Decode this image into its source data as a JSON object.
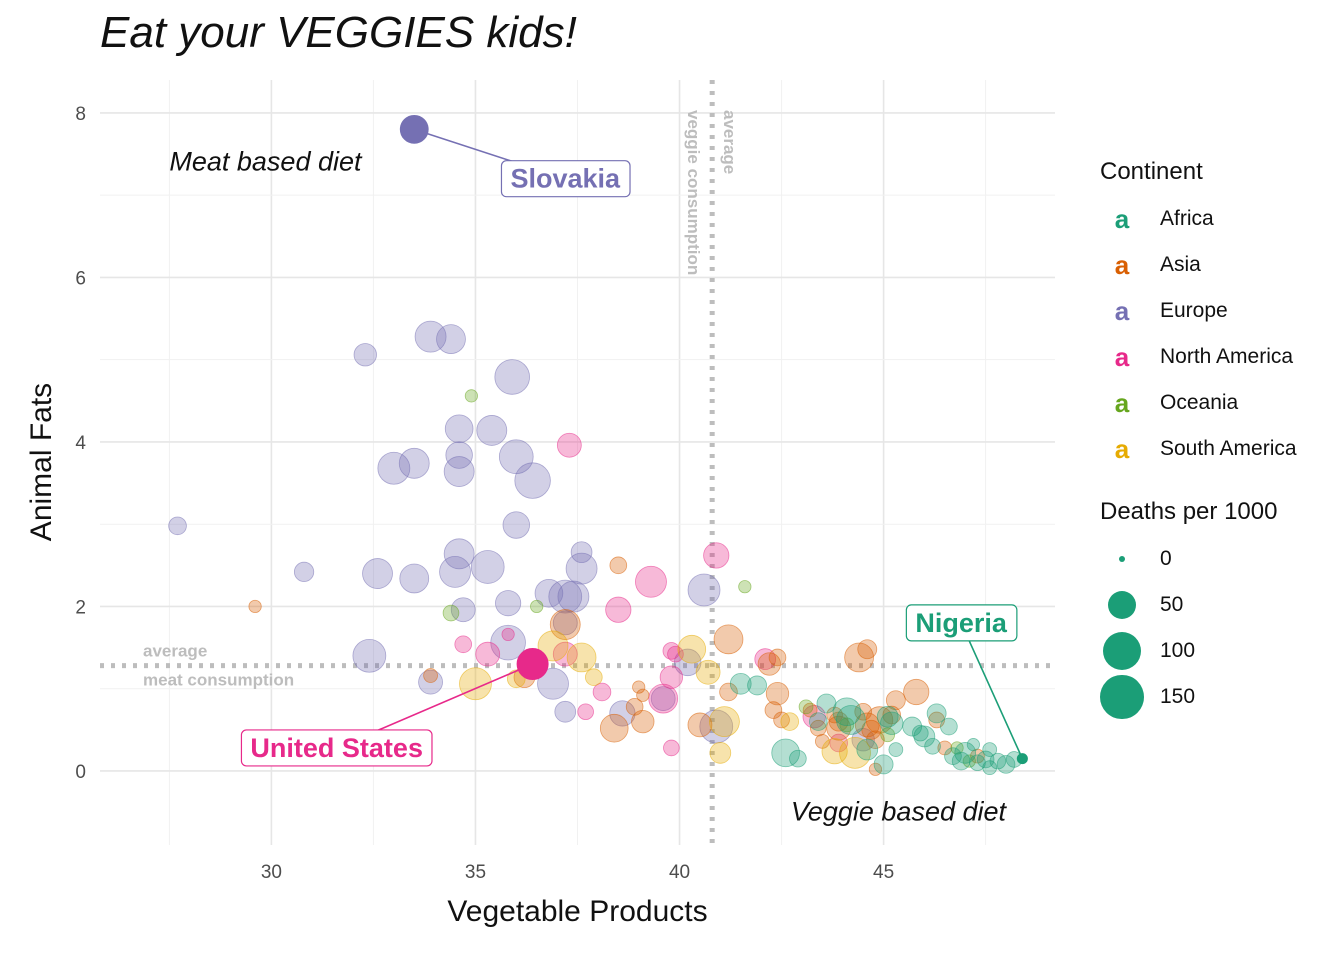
{
  "chart_data": {
    "type": "scatter",
    "title": "Eat your VEGGIES kids!",
    "xlabel": "Vegetable Products",
    "ylabel": "Animal Fats",
    "xlim": [
      25.8,
      49.2
    ],
    "ylim": [
      -0.9,
      8.4
    ],
    "x_ticks": [
      30,
      35,
      40,
      45
    ],
    "y_ticks": [
      0,
      2,
      4,
      6,
      8
    ],
    "grid": true,
    "legend_position": "right",
    "continents": [
      {
        "name": "Africa",
        "color": "#1b9e77"
      },
      {
        "name": "Asia",
        "color": "#d95f02"
      },
      {
        "name": "Europe",
        "color": "#7570b3"
      },
      {
        "name": "North America",
        "color": "#e7298a"
      },
      {
        "name": "Oceania",
        "color": "#66a61e"
      },
      {
        "name": "South America",
        "color": "#e6ab02"
      }
    ],
    "continent_legend_title": "Continent",
    "continent_key_glyph": "a",
    "size_legend_title": "Deaths per 1000",
    "size_legend": [
      0,
      50,
      100,
      150
    ],
    "average_vegetable": 40.8,
    "average_animal_fat": 1.28,
    "average_vegetable_label": [
      "average",
      "veggie consumption"
    ],
    "average_fat_label": [
      "average",
      "meat consumption"
    ],
    "quadrant_labels": [
      {
        "text": "Meat based diet",
        "x": 27.5,
        "y": 7.3
      },
      {
        "text": "Veggie based diet",
        "x": 48.0,
        "y": -0.6
      }
    ],
    "highlights": [
      {
        "name": "Slovakia",
        "continent": "Europe",
        "x": 33.5,
        "y": 7.8,
        "deaths": 45,
        "label_x": 37.2,
        "label_y": 7.2
      },
      {
        "name": "United States",
        "continent": "North America",
        "x": 36.4,
        "y": 1.3,
        "deaths": 60,
        "label_x": 31.6,
        "label_y": 0.28
      },
      {
        "name": "Nigeria",
        "continent": "Africa",
        "x": 48.4,
        "y": 0.15,
        "deaths": 1,
        "label_x": 46.9,
        "label_y": 1.8
      }
    ],
    "points": [
      {
        "c": "Europe",
        "x": 27.7,
        "y": 2.98,
        "d": 12
      },
      {
        "c": "Europe",
        "x": 30.8,
        "y": 2.42,
        "d": 16
      },
      {
        "c": "Europe",
        "x": 32.3,
        "y": 5.06,
        "d": 25
      },
      {
        "c": "Europe",
        "x": 33.0,
        "y": 3.68,
        "d": 65
      },
      {
        "c": "Europe",
        "x": 33.5,
        "y": 3.74,
        "d": 55
      },
      {
        "c": "Europe",
        "x": 32.6,
        "y": 2.4,
        "d": 55
      },
      {
        "c": "Europe",
        "x": 32.4,
        "y": 1.4,
        "d": 70
      },
      {
        "c": "Europe",
        "x": 33.5,
        "y": 2.34,
        "d": 50
      },
      {
        "c": "Europe",
        "x": 33.9,
        "y": 5.28,
        "d": 60
      },
      {
        "c": "Europe",
        "x": 34.4,
        "y": 5.25,
        "d": 50
      },
      {
        "c": "Europe",
        "x": 34.6,
        "y": 4.16,
        "d": 45
      },
      {
        "c": "Europe",
        "x": 34.6,
        "y": 3.84,
        "d": 40
      },
      {
        "c": "Europe",
        "x": 34.6,
        "y": 3.64,
        "d": 55
      },
      {
        "c": "Europe",
        "x": 34.6,
        "y": 2.64,
        "d": 55
      },
      {
        "c": "Europe",
        "x": 34.5,
        "y": 2.42,
        "d": 60
      },
      {
        "c": "Europe",
        "x": 34.7,
        "y": 1.96,
        "d": 30
      },
      {
        "c": "Europe",
        "x": 35.4,
        "y": 4.14,
        "d": 55
      },
      {
        "c": "Europe",
        "x": 35.3,
        "y": 2.48,
        "d": 70
      },
      {
        "c": "Europe",
        "x": 35.9,
        "y": 4.79,
        "d": 80
      },
      {
        "c": "Europe",
        "x": 36.0,
        "y": 3.82,
        "d": 75
      },
      {
        "c": "Europe",
        "x": 36.4,
        "y": 3.53,
        "d": 85
      },
      {
        "c": "Europe",
        "x": 36.0,
        "y": 2.99,
        "d": 40
      },
      {
        "c": "Europe",
        "x": 35.8,
        "y": 2.04,
        "d": 35
      },
      {
        "c": "Europe",
        "x": 35.8,
        "y": 1.56,
        "d": 80
      },
      {
        "c": "Europe",
        "x": 36.8,
        "y": 2.16,
        "d": 45
      },
      {
        "c": "Europe",
        "x": 37.2,
        "y": 2.12,
        "d": 70
      },
      {
        "c": "Europe",
        "x": 37.4,
        "y": 2.12,
        "d": 60
      },
      {
        "c": "Europe",
        "x": 37.6,
        "y": 2.66,
        "d": 20
      },
      {
        "c": "Europe",
        "x": 37.6,
        "y": 2.46,
        "d": 60
      },
      {
        "c": "Europe",
        "x": 37.2,
        "y": 1.8,
        "d": 30
      },
      {
        "c": "Europe",
        "x": 36.9,
        "y": 1.06,
        "d": 60
      },
      {
        "c": "Europe",
        "x": 37.2,
        "y": 0.72,
        "d": 20
      },
      {
        "c": "Europe",
        "x": 33.9,
        "y": 1.08,
        "d": 30
      },
      {
        "c": "Europe",
        "x": 38.6,
        "y": 0.7,
        "d": 35
      },
      {
        "c": "Europe",
        "x": 40.6,
        "y": 2.2,
        "d": 65
      },
      {
        "c": "Europe",
        "x": 40.2,
        "y": 1.32,
        "d": 40
      },
      {
        "c": "Europe",
        "x": 40.9,
        "y": 0.54,
        "d": 70
      },
      {
        "c": "Europe",
        "x": 39.6,
        "y": 0.88,
        "d": 30
      },
      {
        "c": "Europe",
        "x": 44.5,
        "y": 0.38,
        "d": 25
      },
      {
        "c": "North America",
        "x": 37.3,
        "y": 3.96,
        "d": 30
      },
      {
        "c": "North America",
        "x": 38.5,
        "y": 1.96,
        "d": 35
      },
      {
        "c": "North America",
        "x": 39.3,
        "y": 2.3,
        "d": 60
      },
      {
        "c": "North America",
        "x": 40.9,
        "y": 2.62,
        "d": 35
      },
      {
        "c": "North America",
        "x": 35.3,
        "y": 1.42,
        "d": 30
      },
      {
        "c": "North America",
        "x": 34.7,
        "y": 1.54,
        "d": 10
      },
      {
        "c": "North America",
        "x": 35.8,
        "y": 1.66,
        "d": 3
      },
      {
        "c": "North America",
        "x": 37.2,
        "y": 1.42,
        "d": 30
      },
      {
        "c": "North America",
        "x": 38.1,
        "y": 0.96,
        "d": 12
      },
      {
        "c": "North America",
        "x": 37.7,
        "y": 0.72,
        "d": 8
      },
      {
        "c": "North America",
        "x": 39.6,
        "y": 0.88,
        "d": 50
      },
      {
        "c": "North America",
        "x": 39.8,
        "y": 1.14,
        "d": 25
      },
      {
        "c": "North America",
        "x": 39.8,
        "y": 1.46,
        "d": 10
      },
      {
        "c": "North America",
        "x": 39.9,
        "y": 1.42,
        "d": 8
      },
      {
        "c": "North America",
        "x": 39.8,
        "y": 0.28,
        "d": 8
      },
      {
        "c": "North America",
        "x": 42.1,
        "y": 1.36,
        "d": 20
      },
      {
        "c": "North America",
        "x": 43.3,
        "y": 0.66,
        "d": 25
      },
      {
        "c": "North America",
        "x": 43.9,
        "y": 0.34,
        "d": 12
      },
      {
        "c": "Asia",
        "x": 29.6,
        "y": 2.0,
        "d": 3
      },
      {
        "c": "Asia",
        "x": 33.9,
        "y": 1.16,
        "d": 5
      },
      {
        "c": "Asia",
        "x": 37.2,
        "y": 1.78,
        "d": 55
      },
      {
        "c": "Asia",
        "x": 38.5,
        "y": 2.5,
        "d": 10
      },
      {
        "c": "Asia",
        "x": 39.0,
        "y": 1.02,
        "d": 3
      },
      {
        "c": "Asia",
        "x": 39.1,
        "y": 0.92,
        "d": 3
      },
      {
        "c": "Asia",
        "x": 38.9,
        "y": 0.78,
        "d": 10
      },
      {
        "c": "Asia",
        "x": 39.1,
        "y": 0.6,
        "d": 25
      },
      {
        "c": "Asia",
        "x": 38.4,
        "y": 0.52,
        "d": 45
      },
      {
        "c": "Asia",
        "x": 36.2,
        "y": 1.14,
        "d": 20
      },
      {
        "c": "Asia",
        "x": 40.5,
        "y": 0.56,
        "d": 30
      },
      {
        "c": "Asia",
        "x": 41.2,
        "y": 1.6,
        "d": 50
      },
      {
        "c": "Asia",
        "x": 41.2,
        "y": 0.96,
        "d": 12
      },
      {
        "c": "Asia",
        "x": 42.2,
        "y": 1.3,
        "d": 25
      },
      {
        "c": "Asia",
        "x": 42.4,
        "y": 1.38,
        "d": 10
      },
      {
        "c": "Asia",
        "x": 42.4,
        "y": 0.94,
        "d": 25
      },
      {
        "c": "Asia",
        "x": 42.3,
        "y": 0.74,
        "d": 10
      },
      {
        "c": "Asia",
        "x": 42.5,
        "y": 0.62,
        "d": 8
      },
      {
        "c": "Asia",
        "x": 43.2,
        "y": 0.74,
        "d": 5
      },
      {
        "c": "Asia",
        "x": 43.4,
        "y": 0.52,
        "d": 8
      },
      {
        "c": "Asia",
        "x": 43.5,
        "y": 0.36,
        "d": 5
      },
      {
        "c": "Asia",
        "x": 43.8,
        "y": 0.68,
        "d": 8
      },
      {
        "c": "Asia",
        "x": 43.9,
        "y": 0.6,
        "d": 15
      },
      {
        "c": "Asia",
        "x": 43.9,
        "y": 0.52,
        "d": 30
      },
      {
        "c": "Asia",
        "x": 44.4,
        "y": 1.38,
        "d": 50
      },
      {
        "c": "Asia",
        "x": 44.6,
        "y": 1.48,
        "d": 15
      },
      {
        "c": "Asia",
        "x": 44.5,
        "y": 0.72,
        "d": 10
      },
      {
        "c": "Asia",
        "x": 44.6,
        "y": 0.56,
        "d": 30
      },
      {
        "c": "Asia",
        "x": 44.7,
        "y": 0.5,
        "d": 15
      },
      {
        "c": "Asia",
        "x": 44.8,
        "y": 0.38,
        "d": 12
      },
      {
        "c": "Asia",
        "x": 44.9,
        "y": 0.62,
        "d": 40
      },
      {
        "c": "Asia",
        "x": 45.2,
        "y": 0.68,
        "d": 12
      },
      {
        "c": "Asia",
        "x": 45.3,
        "y": 0.86,
        "d": 15
      },
      {
        "c": "Asia",
        "x": 45.8,
        "y": 0.96,
        "d": 35
      },
      {
        "c": "Asia",
        "x": 46.3,
        "y": 0.62,
        "d": 8
      },
      {
        "c": "Asia",
        "x": 46.5,
        "y": 0.28,
        "d": 5
      },
      {
        "c": "Asia",
        "x": 44.8,
        "y": 0.02,
        "d": 3
      },
      {
        "c": "Asia",
        "x": 47.3,
        "y": 0.18,
        "d": 5
      },
      {
        "c": "South America",
        "x": 35.0,
        "y": 1.06,
        "d": 65
      },
      {
        "c": "South America",
        "x": 36.0,
        "y": 1.12,
        "d": 12
      },
      {
        "c": "South America",
        "x": 36.9,
        "y": 1.52,
        "d": 55
      },
      {
        "c": "South America",
        "x": 37.6,
        "y": 1.38,
        "d": 50
      },
      {
        "c": "South America",
        "x": 37.9,
        "y": 1.14,
        "d": 10
      },
      {
        "c": "South America",
        "x": 40.3,
        "y": 1.48,
        "d": 45
      },
      {
        "c": "South America",
        "x": 40.7,
        "y": 1.2,
        "d": 30
      },
      {
        "c": "South America",
        "x": 41.1,
        "y": 0.6,
        "d": 55
      },
      {
        "c": "South America",
        "x": 41.0,
        "y": 0.22,
        "d": 20
      },
      {
        "c": "South America",
        "x": 42.7,
        "y": 0.6,
        "d": 12
      },
      {
        "c": "South America",
        "x": 43.8,
        "y": 0.24,
        "d": 35
      },
      {
        "c": "South America",
        "x": 44.3,
        "y": 0.22,
        "d": 60
      },
      {
        "c": "Oceania",
        "x": 34.9,
        "y": 4.56,
        "d": 3
      },
      {
        "c": "Oceania",
        "x": 34.4,
        "y": 1.92,
        "d": 8
      },
      {
        "c": "Oceania",
        "x": 36.5,
        "y": 2.0,
        "d": 3
      },
      {
        "c": "Oceania",
        "x": 41.6,
        "y": 2.24,
        "d": 3
      },
      {
        "c": "Oceania",
        "x": 43.1,
        "y": 0.78,
        "d": 5
      },
      {
        "c": "Oceania",
        "x": 44.1,
        "y": 0.56,
        "d": 5
      },
      {
        "c": "Oceania",
        "x": 45.1,
        "y": 0.44,
        "d": 5
      },
      {
        "c": "Oceania",
        "x": 46.8,
        "y": 0.28,
        "d": 3
      },
      {
        "c": "Oceania",
        "x": 47.1,
        "y": 0.12,
        "d": 3
      },
      {
        "c": "Africa",
        "x": 41.5,
        "y": 1.06,
        "d": 20
      },
      {
        "c": "Africa",
        "x": 41.9,
        "y": 1.04,
        "d": 15
      },
      {
        "c": "Africa",
        "x": 42.6,
        "y": 0.22,
        "d": 45
      },
      {
        "c": "Africa",
        "x": 42.9,
        "y": 0.15,
        "d": 10
      },
      {
        "c": "Africa",
        "x": 43.6,
        "y": 0.82,
        "d": 15
      },
      {
        "c": "Africa",
        "x": 43.4,
        "y": 0.6,
        "d": 12
      },
      {
        "c": "Africa",
        "x": 44.1,
        "y": 0.72,
        "d": 45
      },
      {
        "c": "Africa",
        "x": 44.2,
        "y": 0.62,
        "d": 50
      },
      {
        "c": "Africa",
        "x": 44.6,
        "y": 0.26,
        "d": 20
      },
      {
        "c": "Africa",
        "x": 45.0,
        "y": 0.08,
        "d": 15
      },
      {
        "c": "Africa",
        "x": 45.1,
        "y": 0.66,
        "d": 20
      },
      {
        "c": "Africa",
        "x": 45.2,
        "y": 0.58,
        "d": 25
      },
      {
        "c": "Africa",
        "x": 45.3,
        "y": 0.26,
        "d": 5
      },
      {
        "c": "Africa",
        "x": 45.7,
        "y": 0.54,
        "d": 15
      },
      {
        "c": "Africa",
        "x": 45.9,
        "y": 0.46,
        "d": 8
      },
      {
        "c": "Africa",
        "x": 46.0,
        "y": 0.42,
        "d": 20
      },
      {
        "c": "Africa",
        "x": 46.2,
        "y": 0.3,
        "d": 8
      },
      {
        "c": "Africa",
        "x": 46.3,
        "y": 0.7,
        "d": 15
      },
      {
        "c": "Africa",
        "x": 46.6,
        "y": 0.54,
        "d": 10
      },
      {
        "c": "Africa",
        "x": 46.7,
        "y": 0.18,
        "d": 10
      },
      {
        "c": "Africa",
        "x": 46.9,
        "y": 0.12,
        "d": 12
      },
      {
        "c": "Africa",
        "x": 47.0,
        "y": 0.22,
        "d": 20
      },
      {
        "c": "Africa",
        "x": 47.3,
        "y": 0.1,
        "d": 8
      },
      {
        "c": "Africa",
        "x": 47.5,
        "y": 0.14,
        "d": 10
      },
      {
        "c": "Africa",
        "x": 47.6,
        "y": 0.26,
        "d": 5
      },
      {
        "c": "Africa",
        "x": 47.8,
        "y": 0.12,
        "d": 8
      },
      {
        "c": "Africa",
        "x": 48.0,
        "y": 0.08,
        "d": 12
      },
      {
        "c": "Africa",
        "x": 48.2,
        "y": 0.14,
        "d": 8
      },
      {
        "c": "Africa",
        "x": 47.2,
        "y": 0.32,
        "d": 3
      },
      {
        "c": "Africa",
        "x": 47.6,
        "y": 0.04,
        "d": 5
      }
    ]
  }
}
